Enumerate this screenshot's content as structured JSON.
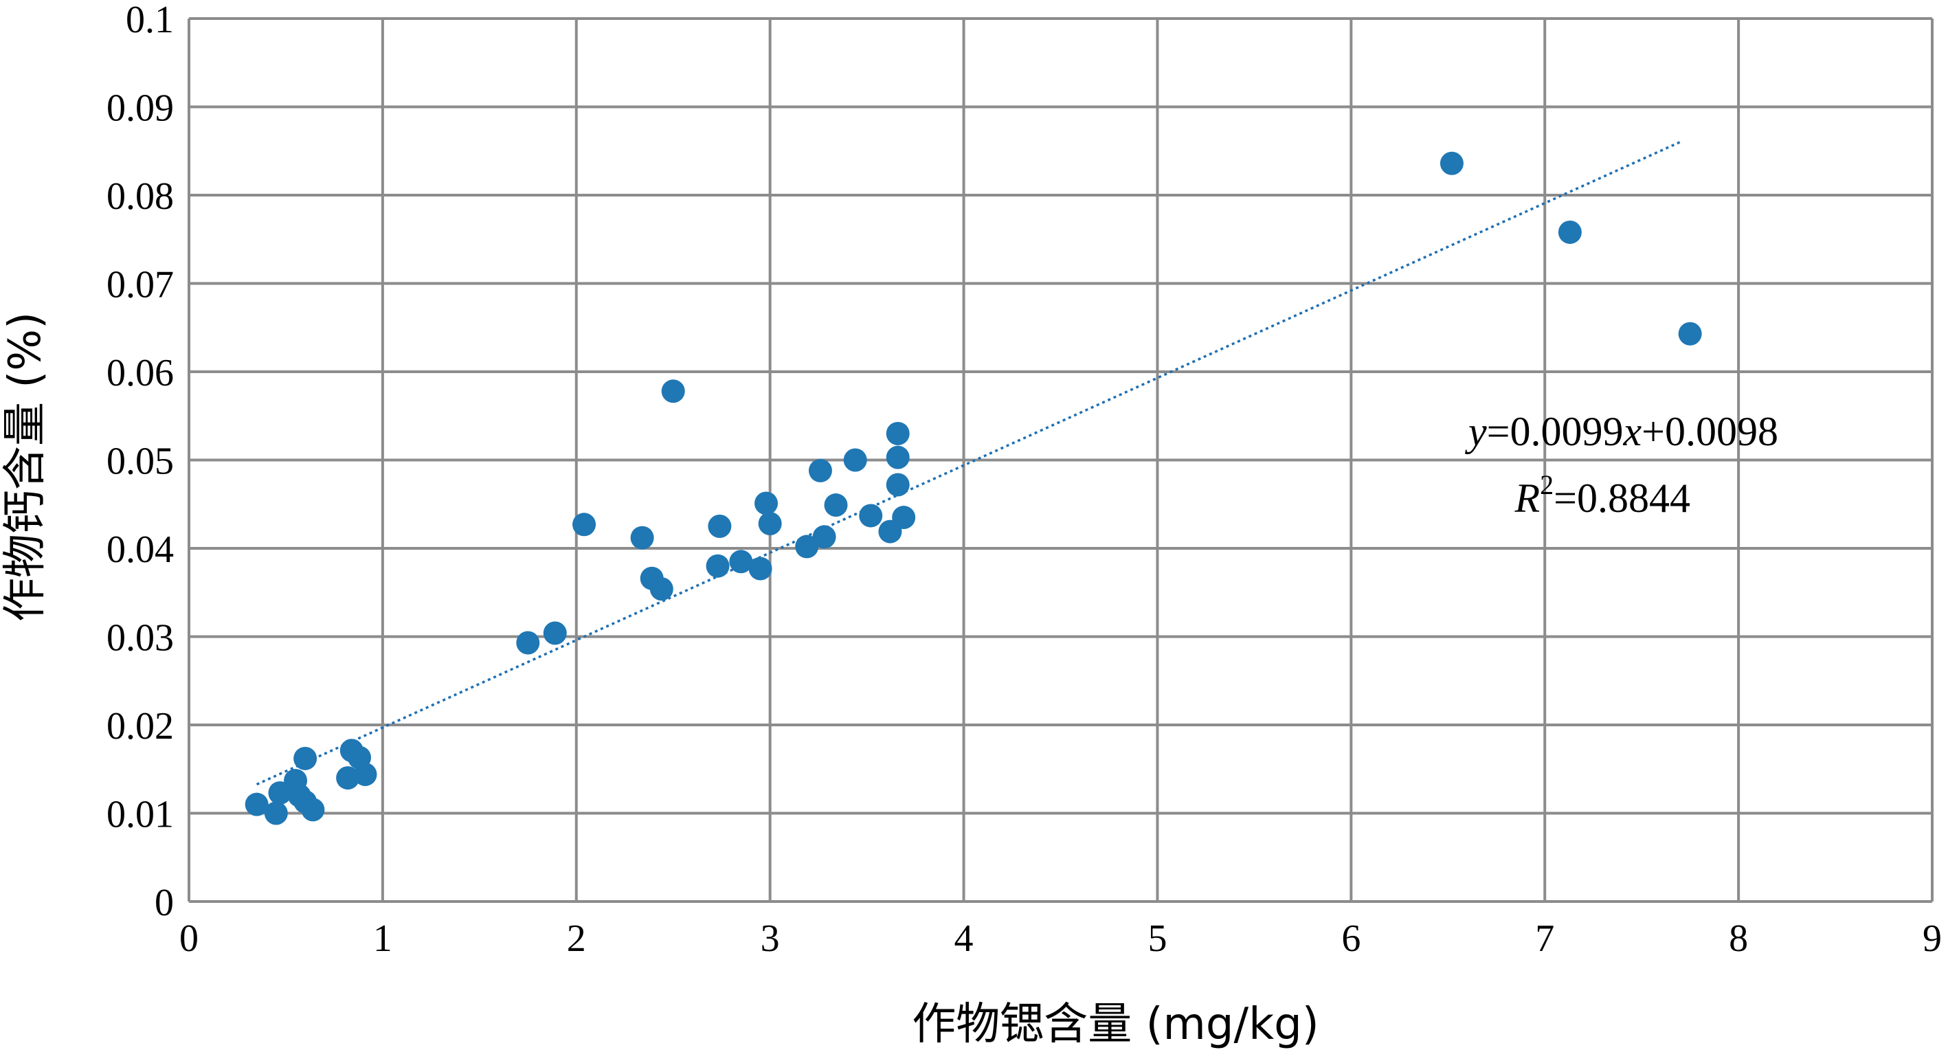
{
  "chart_data": {
    "type": "scatter",
    "xlabel": "作物锶含量 (mg/kg)",
    "ylabel": "作物钙含量 (%)",
    "xlim": [
      0,
      9
    ],
    "ylim": [
      0,
      0.1
    ],
    "x_ticks": [
      "0",
      "1",
      "2",
      "3",
      "4",
      "5",
      "6",
      "7",
      "8",
      "9"
    ],
    "y_ticks": [
      "0",
      "0.01",
      "0.02",
      "0.03",
      "0.04",
      "0.05",
      "0.06",
      "0.07",
      "0.08",
      "0.09",
      "0.1"
    ],
    "grid": true,
    "marker_color": "#1f77b4",
    "trendline_color": "#1f6fb2",
    "trendline": {
      "slope": 0.0099,
      "intercept": 0.0098,
      "x_range": [
        0.35,
        7.7
      ],
      "equation_parts": [
        "y",
        "=0.0099",
        "x",
        "+0.0098"
      ],
      "r2_parts": [
        "R",
        "2",
        "=0.8844"
      ]
    },
    "points": [
      {
        "x": 0.35,
        "y": 0.011
      },
      {
        "x": 0.45,
        "y": 0.01
      },
      {
        "x": 0.47,
        "y": 0.0123
      },
      {
        "x": 0.55,
        "y": 0.0137
      },
      {
        "x": 0.57,
        "y": 0.012
      },
      {
        "x": 0.6,
        "y": 0.0113
      },
      {
        "x": 0.6,
        "y": 0.0162
      },
      {
        "x": 0.64,
        "y": 0.0104
      },
      {
        "x": 0.82,
        "y": 0.014
      },
      {
        "x": 0.84,
        "y": 0.0171
      },
      {
        "x": 0.88,
        "y": 0.0163
      },
      {
        "x": 0.91,
        "y": 0.0144
      },
      {
        "x": 1.75,
        "y": 0.0293
      },
      {
        "x": 1.89,
        "y": 0.0304
      },
      {
        "x": 2.04,
        "y": 0.0427
      },
      {
        "x": 2.34,
        "y": 0.0412
      },
      {
        "x": 2.39,
        "y": 0.0366
      },
      {
        "x": 2.44,
        "y": 0.0354
      },
      {
        "x": 2.5,
        "y": 0.0578
      },
      {
        "x": 2.73,
        "y": 0.038
      },
      {
        "x": 2.74,
        "y": 0.0425
      },
      {
        "x": 2.85,
        "y": 0.0385
      },
      {
        "x": 2.95,
        "y": 0.0377
      },
      {
        "x": 2.98,
        "y": 0.0451
      },
      {
        "x": 3.0,
        "y": 0.0428
      },
      {
        "x": 3.19,
        "y": 0.0402
      },
      {
        "x": 3.26,
        "y": 0.0488
      },
      {
        "x": 3.28,
        "y": 0.0413
      },
      {
        "x": 3.34,
        "y": 0.0449
      },
      {
        "x": 3.44,
        "y": 0.05
      },
      {
        "x": 3.52,
        "y": 0.0437
      },
      {
        "x": 3.62,
        "y": 0.0419
      },
      {
        "x": 3.66,
        "y": 0.0472
      },
      {
        "x": 3.66,
        "y": 0.0503
      },
      {
        "x": 3.66,
        "y": 0.053
      },
      {
        "x": 3.69,
        "y": 0.0435
      },
      {
        "x": 6.52,
        "y": 0.0836
      },
      {
        "x": 7.13,
        "y": 0.0758
      },
      {
        "x": 7.75,
        "y": 0.0643
      }
    ]
  }
}
